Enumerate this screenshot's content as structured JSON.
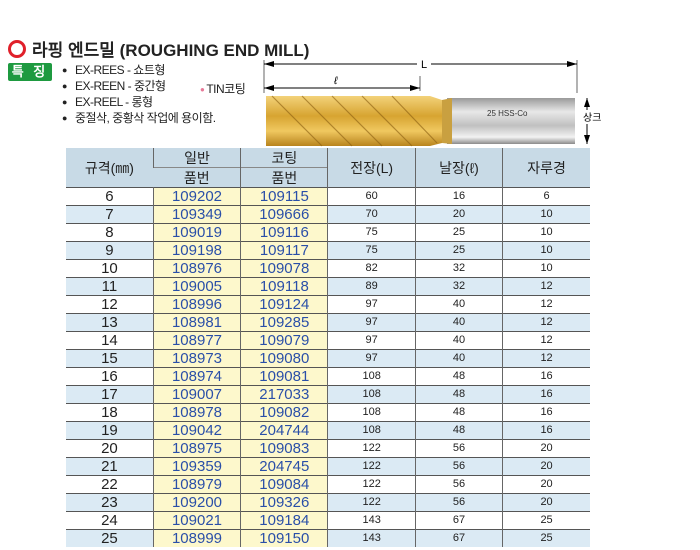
{
  "title": "라핑 엔드밀 (ROUGHING END MILL)",
  "badge": "특 징",
  "features": [
    "EX-REES - 쇼트형",
    "EX-REEN - 중간형",
    "EX-REEL - 롱형",
    "중절삭, 중황삭 작업에 용이함."
  ],
  "coating_note": "TIN코팅",
  "diagram": {
    "L": "L",
    "l": "ℓ",
    "shank": "상크",
    "marking": "25 HSS-Co"
  },
  "table": {
    "headers": {
      "size": "규격(㎜)",
      "general_top": "일반",
      "general_bottom": "품번",
      "coated_top": "코팅",
      "coated_bottom": "품번",
      "overall": "전장(L)",
      "flute": "날장(ℓ)",
      "shank": "자루경"
    },
    "rows": [
      [
        "6",
        "109202",
        "109115",
        "60",
        "16",
        "6"
      ],
      [
        "7",
        "109349",
        "109666",
        "70",
        "20",
        "10"
      ],
      [
        "8",
        "109019",
        "109116",
        "75",
        "25",
        "10"
      ],
      [
        "9",
        "109198",
        "109117",
        "75",
        "25",
        "10"
      ],
      [
        "10",
        "108976",
        "109078",
        "82",
        "32",
        "10"
      ],
      [
        "11",
        "109005",
        "109118",
        "89",
        "32",
        "12"
      ],
      [
        "12",
        "108996",
        "109124",
        "97",
        "40",
        "12"
      ],
      [
        "13",
        "108981",
        "109285",
        "97",
        "40",
        "12"
      ],
      [
        "14",
        "108977",
        "109079",
        "97",
        "40",
        "12"
      ],
      [
        "15",
        "108973",
        "109080",
        "97",
        "40",
        "12"
      ],
      [
        "16",
        "108974",
        "109081",
        "108",
        "48",
        "16"
      ],
      [
        "17",
        "109007",
        "217033",
        "108",
        "48",
        "16"
      ],
      [
        "18",
        "108978",
        "109082",
        "108",
        "48",
        "16"
      ],
      [
        "19",
        "109042",
        "204744",
        "108",
        "48",
        "16"
      ],
      [
        "20",
        "108975",
        "109083",
        "122",
        "56",
        "20"
      ],
      [
        "21",
        "109359",
        "204745",
        "122",
        "56",
        "20"
      ],
      [
        "22",
        "108979",
        "109084",
        "122",
        "56",
        "20"
      ],
      [
        "23",
        "109200",
        "109326",
        "122",
        "56",
        "20"
      ],
      [
        "24",
        "109021",
        "109184",
        "143",
        "67",
        "25"
      ],
      [
        "25",
        "108999",
        "109150",
        "143",
        "67",
        "25"
      ]
    ]
  }
}
